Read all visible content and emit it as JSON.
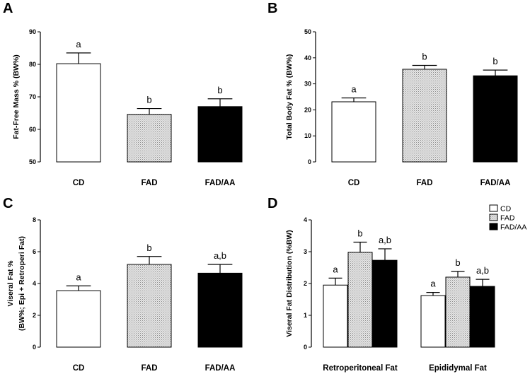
{
  "chart_data": [
    {
      "panel": "A",
      "type": "bar",
      "title": "",
      "xlabel": "",
      "ylabel": "Fat-Free Mass % (BW%)",
      "ylim": [
        50,
        90
      ],
      "yticks": [
        50,
        60,
        70,
        80,
        90
      ],
      "categories": [
        "CD",
        "FAD",
        "FAD/AA"
      ],
      "values": [
        80.2,
        64.6,
        67.0
      ],
      "errors": [
        3.3,
        1.8,
        2.4
      ],
      "significance": [
        "a",
        "b",
        "b"
      ],
      "fills": [
        "white",
        "stipple",
        "black"
      ]
    },
    {
      "panel": "B",
      "type": "bar",
      "title": "",
      "xlabel": "",
      "ylabel": "Total Body Fat % (BW%)",
      "ylim": [
        0,
        50
      ],
      "yticks": [
        0,
        10,
        20,
        30,
        40,
        50
      ],
      "categories": [
        "CD",
        "FAD",
        "FAD/AA"
      ],
      "values": [
        23.1,
        35.6,
        33.1
      ],
      "errors": [
        1.5,
        1.5,
        2.2
      ],
      "significance": [
        "a",
        "b",
        "b"
      ],
      "fills": [
        "white",
        "stipple",
        "black"
      ]
    },
    {
      "panel": "C",
      "type": "bar",
      "title": "",
      "xlabel": "",
      "ylabel_lines": [
        "Viseral Fat %",
        "(BW%; Epi + Retroperi Fat)"
      ],
      "ylim": [
        0,
        8
      ],
      "yticks": [
        0,
        2,
        4,
        6,
        8
      ],
      "categories": [
        "CD",
        "FAD",
        "FAD/AA"
      ],
      "values": [
        3.55,
        5.2,
        4.65
      ],
      "errors": [
        0.3,
        0.5,
        0.55
      ],
      "significance": [
        "a",
        "b",
        "a,b"
      ],
      "fills": [
        "white",
        "stipple",
        "black"
      ]
    },
    {
      "panel": "D",
      "type": "bar",
      "title": "",
      "xlabel": "",
      "ylabel": "Viseral Fat Distribution (%BW)",
      "ylim": [
        0,
        4
      ],
      "yticks": [
        0,
        1,
        2,
        3,
        4
      ],
      "categories": [
        "Retroperitoneal Fat",
        "Epididymal Fat"
      ],
      "series": [
        {
          "name": "CD",
          "fill": "white",
          "values": [
            1.95,
            1.62
          ],
          "errors": [
            0.22,
            0.1
          ],
          "significance": [
            "a",
            "a"
          ]
        },
        {
          "name": "FAD",
          "fill": "stipple",
          "values": [
            2.98,
            2.2
          ],
          "errors": [
            0.32,
            0.18
          ],
          "significance": [
            "b",
            "b"
          ]
        },
        {
          "name": "FAD/AA",
          "fill": "black",
          "values": [
            2.73,
            1.91
          ],
          "errors": [
            0.36,
            0.22
          ],
          "significance": [
            "a,b",
            "a,b"
          ]
        }
      ],
      "legend": {
        "entries": [
          "CD",
          "FAD",
          "FAD/AA"
        ],
        "placement": "top-right"
      }
    }
  ]
}
